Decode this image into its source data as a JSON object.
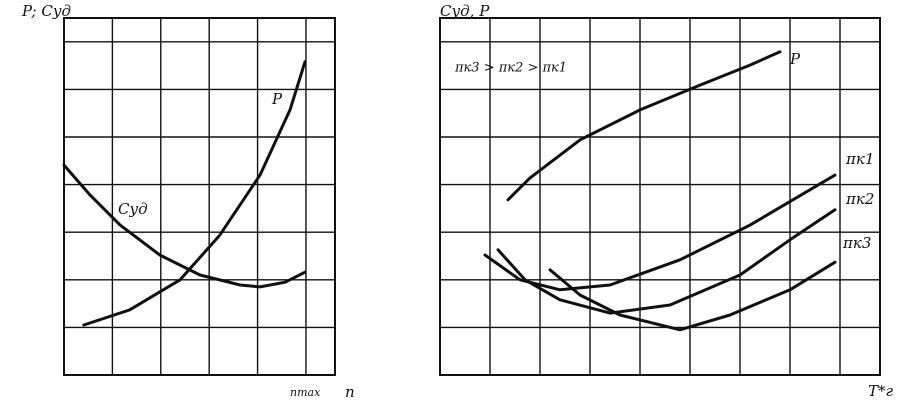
{
  "chart_data": [
    {
      "type": "line",
      "ylabel": "P; Cуд",
      "xlabel": "n",
      "annotation": "nmax",
      "xlim": [
        0,
        5.6
      ],
      "ylim": [
        0,
        7.5
      ],
      "xticks": [
        1,
        2,
        3,
        4,
        5
      ],
      "yticks": [
        1,
        2,
        3,
        4,
        5,
        6,
        7
      ],
      "grid": true,
      "series": [
        {
          "name": "P",
          "color": "#111111",
          "x": [
            0.41,
            1.36,
            2.4,
            3.22,
            4.05,
            4.67,
            4.98
          ],
          "values": [
            1.05,
            1.37,
            2.0,
            2.94,
            4.2,
            5.57,
            6.58
          ]
        },
        {
          "name": "Cуд",
          "color": "#111111",
          "x": [
            0,
            0.54,
            1.16,
            1.98,
            2.81,
            3.64,
            4.05,
            4.57,
            4.98
          ],
          "values": [
            4.41,
            3.78,
            3.15,
            2.52,
            2.1,
            1.89,
            1.85,
            1.95,
            2.16
          ]
        }
      ]
    },
    {
      "type": "line",
      "ylabel": "Cуд, P",
      "xlabel": "T*г",
      "annotation": "πк3 > πк2 > πк1",
      "xlim": [
        0,
        8.8
      ],
      "ylim": [
        0,
        7.5
      ],
      "xticks": [
        1,
        2,
        3,
        4,
        5,
        6,
        7,
        8
      ],
      "yticks": [
        1,
        2,
        3,
        4,
        5,
        6,
        7
      ],
      "grid": true,
      "series": [
        {
          "name": "P",
          "color": "#111111",
          "x": [
            1.36,
            1.8,
            2.8,
            4.0,
            5.2,
            6.2,
            6.8
          ],
          "values": [
            3.68,
            4.14,
            4.94,
            5.57,
            6.09,
            6.51,
            6.79
          ]
        },
        {
          "name": "πк1",
          "color": "#111111",
          "x": [
            0.9,
            1.6,
            2.4,
            3.4,
            4.8,
            6.2,
            7.9
          ],
          "values": [
            2.52,
            2.0,
            1.79,
            1.89,
            2.42,
            3.15,
            4.2
          ]
        },
        {
          "name": "πк2",
          "color": "#111111",
          "x": [
            1.16,
            1.7,
            2.4,
            3.4,
            4.6,
            6.0,
            7.0,
            7.9
          ],
          "values": [
            2.63,
            2.0,
            1.58,
            1.3,
            1.47,
            2.1,
            2.84,
            3.47
          ]
        },
        {
          "name": "πк3",
          "color": "#111111",
          "x": [
            2.2,
            2.8,
            3.6,
            4.8,
            5.8,
            7.0,
            7.9
          ],
          "values": [
            2.21,
            1.68,
            1.26,
            0.95,
            1.26,
            1.79,
            2.37
          ]
        }
      ]
    }
  ]
}
